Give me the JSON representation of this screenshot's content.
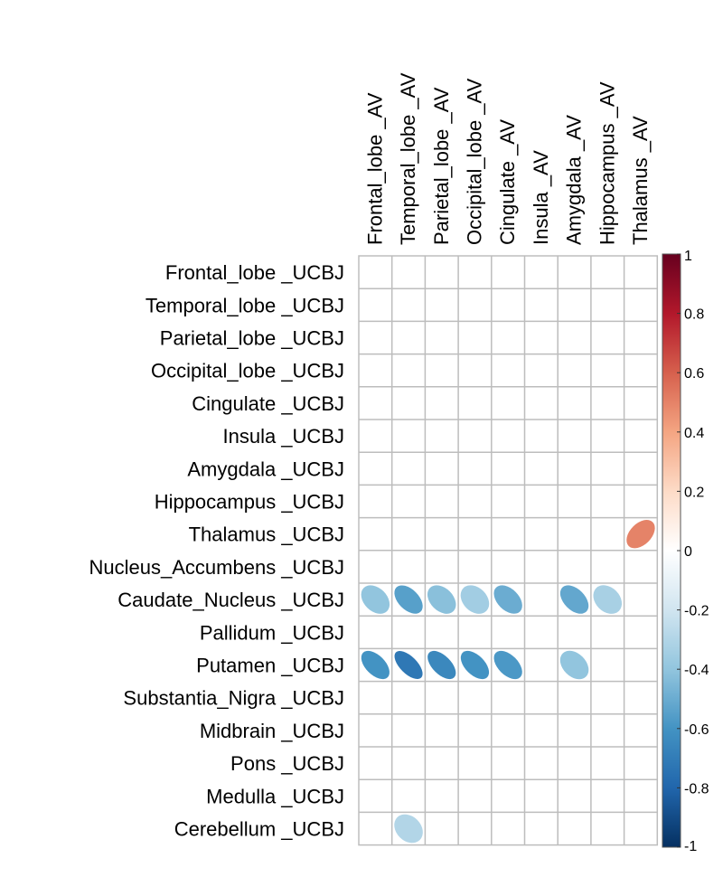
{
  "chart_data": {
    "type": "heatmap",
    "subtype": "correlation-ellipse",
    "columns": [
      "Frontal_lobe _AV",
      "Temporal_lobe _AV",
      "Parietal_lobe _AV",
      "Occipital_lobe _AV",
      "Cingulate _AV",
      "Insula _AV",
      "Amygdala _AV",
      "Hippocampus _AV",
      "Thalamus _AV"
    ],
    "rows": [
      "Frontal_lobe _UCBJ",
      "Temporal_lobe _UCBJ",
      "Parietal_lobe _UCBJ",
      "Occipital_lobe _UCBJ",
      "Cingulate _UCBJ",
      "Insula _UCBJ",
      "Amygdala _UCBJ",
      "Hippocampus _UCBJ",
      "Thalamus _UCBJ",
      "Nucleus_Accumbens _UCBJ",
      "Caudate_Nucleus _UCBJ",
      "Pallidum _UCBJ",
      "Putamen _UCBJ",
      "Substantia_Nigra _UCBJ",
      "Midbrain _UCBJ",
      "Pons _UCBJ",
      "Medulla _UCBJ",
      "Cerebellum _UCBJ"
    ],
    "values": [
      [
        null,
        null,
        null,
        null,
        null,
        null,
        null,
        null,
        null
      ],
      [
        null,
        null,
        null,
        null,
        null,
        null,
        null,
        null,
        null
      ],
      [
        null,
        null,
        null,
        null,
        null,
        null,
        null,
        null,
        null
      ],
      [
        null,
        null,
        null,
        null,
        null,
        null,
        null,
        null,
        null
      ],
      [
        null,
        null,
        null,
        null,
        null,
        null,
        null,
        null,
        null
      ],
      [
        null,
        null,
        null,
        null,
        null,
        null,
        null,
        null,
        null
      ],
      [
        null,
        null,
        null,
        null,
        null,
        null,
        null,
        null,
        null
      ],
      [
        null,
        null,
        null,
        null,
        null,
        null,
        null,
        null,
        null
      ],
      [
        null,
        null,
        null,
        null,
        null,
        null,
        null,
        null,
        0.5
      ],
      [
        null,
        null,
        null,
        null,
        null,
        null,
        null,
        null,
        null
      ],
      [
        -0.4,
        -0.55,
        -0.42,
        -0.35,
        -0.5,
        null,
        -0.52,
        -0.33,
        null
      ],
      [
        null,
        null,
        null,
        null,
        null,
        null,
        null,
        null,
        null
      ],
      [
        -0.6,
        -0.72,
        -0.65,
        -0.6,
        -0.58,
        null,
        -0.4,
        null,
        null
      ],
      [
        null,
        null,
        null,
        null,
        null,
        null,
        null,
        null,
        null
      ],
      [
        null,
        null,
        null,
        null,
        null,
        null,
        null,
        null,
        null
      ],
      [
        null,
        null,
        null,
        null,
        null,
        null,
        null,
        null,
        null
      ],
      [
        null,
        null,
        null,
        null,
        null,
        null,
        null,
        null,
        null
      ],
      [
        null,
        -0.3,
        null,
        null,
        null,
        null,
        null,
        null,
        null
      ]
    ],
    "colorbar": {
      "range": [
        -1,
        1
      ],
      "ticks": [
        "1",
        "0.8",
        "0.6",
        "0.4",
        "0.2",
        "0",
        "-0.2",
        "-0.4",
        "-0.6",
        "-0.8",
        "-1"
      ],
      "palette": [
        "#67001F",
        "#B2182B",
        "#D6604D",
        "#F4A582",
        "#FDDBC7",
        "#FFFFFF",
        "#D1E5F0",
        "#92C5DE",
        "#4393C3",
        "#2166AC",
        "#053061"
      ]
    },
    "grid": true
  }
}
